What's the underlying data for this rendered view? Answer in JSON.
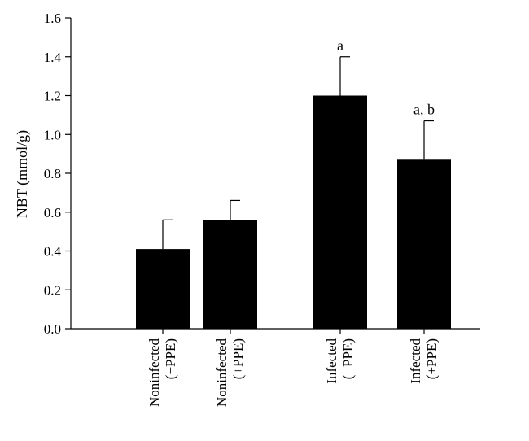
{
  "chart_data": {
    "type": "bar",
    "categories": [
      [
        "Noninfected",
        "(−PPE)"
      ],
      [
        "Noninfected",
        "(+PPE)"
      ],
      [
        "Infected",
        "(−PPE)"
      ],
      [
        "Infected",
        "(+PPE)"
      ]
    ],
    "values": [
      0.41,
      0.56,
      1.2,
      0.87
    ],
    "error_upper": [
      0.56,
      0.66,
      1.4,
      1.07
    ],
    "annotations": [
      "",
      "",
      "a",
      "a, b"
    ],
    "ylabel": "NBT (mmol/g)",
    "xlabel": "",
    "ylim": [
      0,
      1.6
    ],
    "yticks": [
      "0.0",
      "0.2",
      "0.4",
      "0.6",
      "0.8",
      "1.0",
      "1.2",
      "1.4",
      "1.6"
    ],
    "bar_color": "#000000",
    "grid": false,
    "legend": "none"
  }
}
